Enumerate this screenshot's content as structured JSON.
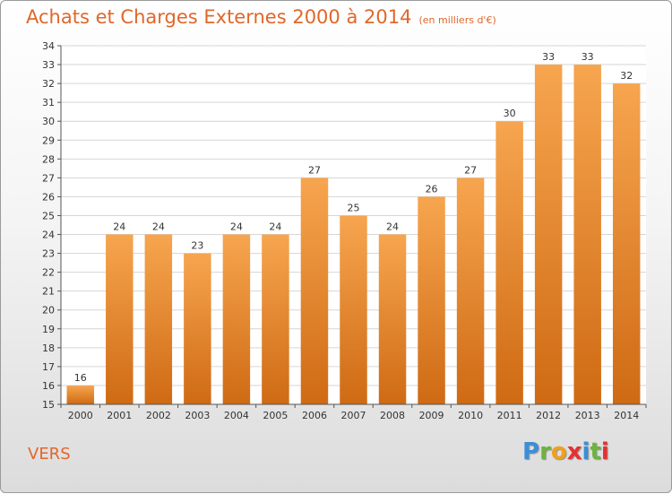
{
  "header": {
    "title": "Achats et Charges Externes 2000 à 2014",
    "unit": "(en milliers d'€)"
  },
  "footer": {
    "commune": "VERS",
    "brand_letters": [
      "P",
      "r",
      "o",
      "x",
      "i",
      "t",
      "i"
    ],
    "brand_colors": [
      "#3a8fd6",
      "#6db33f",
      "#f0a020",
      "#e63030",
      "#3a8fd6",
      "#6db33f",
      "#e63030"
    ]
  },
  "colors": {
    "bar_top": "#f7a54f",
    "bar_bottom": "#cf6a14",
    "title": "#e0672a",
    "grid": "#d6d6d6"
  },
  "chart_data": {
    "type": "bar",
    "categories": [
      "2000",
      "2001",
      "2002",
      "2003",
      "2004",
      "2005",
      "2006",
      "2007",
      "2008",
      "2009",
      "2010",
      "2011",
      "2012",
      "2013",
      "2014"
    ],
    "values": [
      16,
      24,
      24,
      23,
      24,
      24,
      27,
      25,
      24,
      26,
      27,
      30,
      33,
      33,
      32
    ],
    "ylim": [
      15,
      34
    ],
    "yticks": [
      15,
      16,
      17,
      18,
      19,
      20,
      21,
      22,
      23,
      24,
      25,
      26,
      27,
      28,
      29,
      30,
      31,
      32,
      33,
      34
    ],
    "grid": true
  }
}
